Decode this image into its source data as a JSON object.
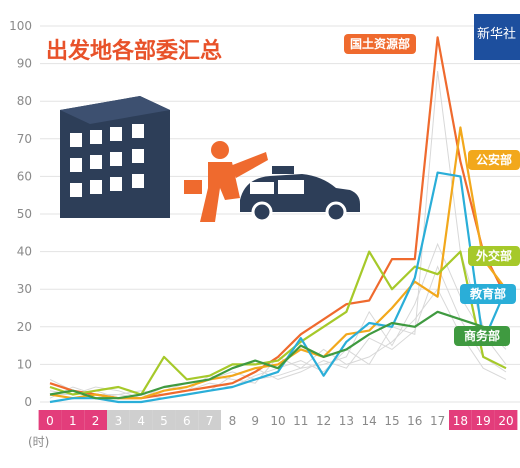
{
  "chart_data": {
    "type": "line",
    "title": "出发地各部委汇总",
    "unit_label": "(时)",
    "watermark": "新华社",
    "x": [
      "0",
      "1",
      "2",
      "3",
      "4",
      "5",
      "6",
      "7",
      "8",
      "9",
      "10",
      "11",
      "12",
      "13",
      "14",
      "15",
      "16",
      "17",
      "18",
      "19",
      "20"
    ],
    "x_highlight": {
      "pink": [
        "0",
        "1",
        "2",
        "18",
        "19",
        "20"
      ],
      "gray": [
        "3",
        "4",
        "5",
        "6",
        "7"
      ]
    },
    "y_ticks": [
      0,
      10,
      20,
      30,
      40,
      50,
      60,
      70,
      80,
      90,
      100
    ],
    "ylim": [
      0,
      100
    ],
    "grid": true,
    "colors": {
      "title": "#e8522a",
      "pink_band": "#e33d7b",
      "gray_band": "#cfcfcf",
      "background_lines": "#d8d8d8"
    },
    "series": [
      {
        "name": "国土资源部",
        "color": "#ef6a2e",
        "values": [
          5,
          3,
          2,
          1,
          1,
          2,
          3,
          4,
          5,
          8,
          12,
          18,
          22,
          26,
          27,
          38,
          38,
          97,
          64,
          40,
          28
        ]
      },
      {
        "name": "公安部",
        "color": "#f2a81c",
        "values": [
          2,
          1,
          2,
          1,
          1,
          3,
          4,
          6,
          7,
          9,
          10,
          14,
          12,
          18,
          19,
          25,
          32,
          28,
          73,
          38,
          30
        ]
      },
      {
        "name": "外交部",
        "color": "#a6c92a",
        "values": [
          4,
          2,
          3,
          4,
          2,
          12,
          6,
          7,
          10,
          10,
          11,
          16,
          20,
          24,
          40,
          30,
          36,
          34,
          40,
          12,
          9
        ]
      },
      {
        "name": "教育部",
        "color": "#2aaed8",
        "values": [
          0,
          1,
          1,
          0,
          0,
          1,
          2,
          3,
          4,
          6,
          8,
          17,
          7,
          16,
          21,
          20,
          33,
          61,
          60,
          16,
          30
        ]
      },
      {
        "name": "商务部",
        "color": "#3f9a40",
        "values": [
          2,
          3,
          1,
          1,
          2,
          4,
          5,
          6,
          9,
          11,
          9,
          15,
          12,
          14,
          18,
          21,
          20,
          24,
          22,
          20,
          15
        ]
      }
    ]
  }
}
